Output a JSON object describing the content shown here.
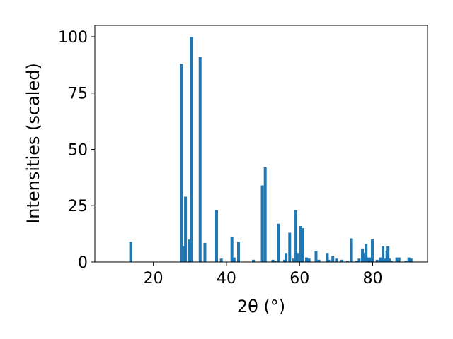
{
  "chart_data": {
    "type": "bar",
    "title": "",
    "xlabel": "2θ (°)",
    "ylabel": "Intensities (scaled)",
    "xlim": [
      4,
      95
    ],
    "ylim": [
      0,
      105
    ],
    "xticks": [
      20,
      40,
      60,
      80
    ],
    "yticks": [
      0,
      25,
      50,
      75,
      100
    ],
    "bar_color": "#1f77b4",
    "grid": false,
    "legend": "none",
    "x": [
      13.8,
      27.7,
      28.5,
      28.8,
      29.9,
      30.4,
      32.8,
      34.1,
      37.3,
      38.6,
      41.5,
      42.1,
      43.3,
      47.4,
      49.8,
      50.6,
      52.7,
      53.3,
      54.2,
      55.9,
      56.3,
      57.3,
      58.4,
      59.0,
      59.5,
      60.3,
      60.9,
      61.9,
      62.6,
      64.5,
      65.3,
      67.6,
      68.0,
      69.1,
      70.1,
      71.6,
      73.1,
      74.2,
      75.6,
      76.3,
      77.2,
      77.8,
      78.2,
      78.6,
      79.5,
      79.9,
      81.2,
      82.1,
      82.8,
      83.4,
      83.9,
      84.2,
      84.6,
      85.1,
      86.6,
      87.2,
      89.1,
      89.9,
      90.5
    ],
    "values": [
      9,
      88,
      7,
      29,
      10,
      100,
      91,
      8.5,
      23,
      1.5,
      11,
      2,
      9,
      1,
      34,
      42,
      1,
      0.5,
      17,
      1,
      4,
      13,
      1.5,
      23,
      4,
      16,
      15,
      2,
      1.5,
      5,
      1,
      4,
      1,
      2.5,
      1.5,
      1,
      0.5,
      10.5,
      0.5,
      1.5,
      6,
      4,
      8,
      2,
      2,
      10,
      1,
      2,
      7,
      1.5,
      5,
      7,
      1.5,
      0.5,
      2,
      2,
      0.5,
      2,
      1.5
    ]
  }
}
